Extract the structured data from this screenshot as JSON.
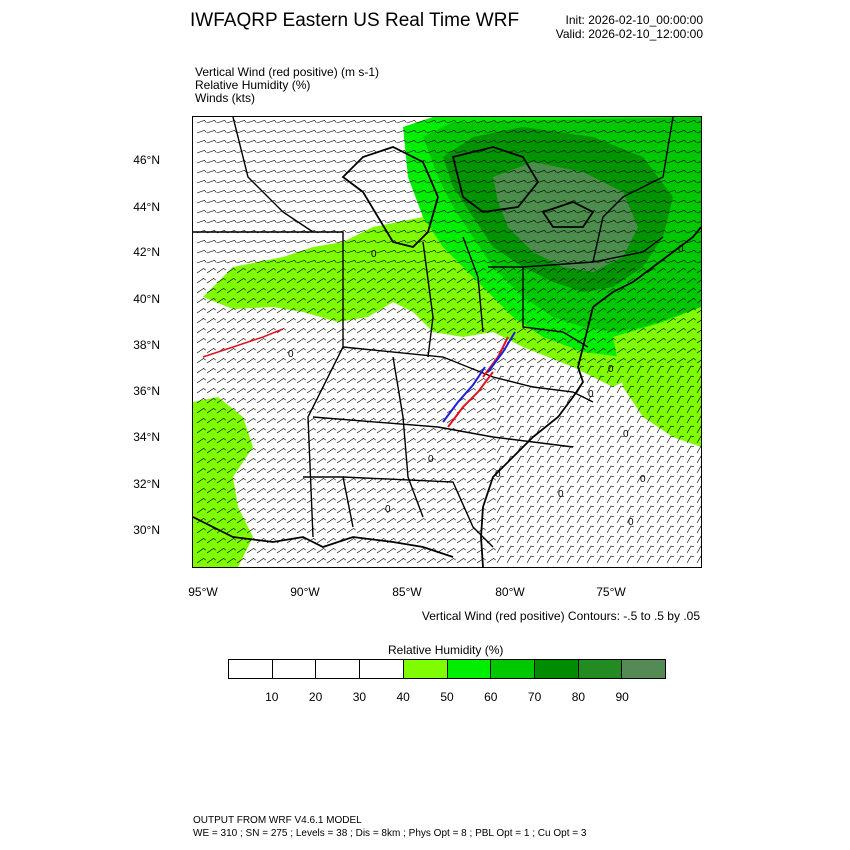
{
  "header": {
    "title": "IWFAQRP Eastern US Real Time WRF",
    "init": "Init: 2026-02-10_00:00:00",
    "valid": "Valid: 2026-02-10_12:00:00"
  },
  "fields": [
    "Vertical Wind (red positive)   (m s-1)",
    "Relative Humidity   (%)",
    "Winds   (kts)"
  ],
  "map": {
    "lat_labels": [
      "46°N",
      "44°N",
      "42°N",
      "40°N",
      "38°N",
      "36°N",
      "34°N",
      "32°N",
      "30°N"
    ],
    "lon_labels": [
      "95°W",
      "90°W",
      "85°W",
      "80°W",
      "75°W"
    ],
    "contour_zero_label": "0",
    "colors": {
      "rh40": "#7ffc00",
      "rh50": "#00ee00",
      "rh60": "#00c800",
      "rh70": "#008b00",
      "rh80": "#228b22",
      "rh90": "#548b54",
      "border": "#000000",
      "updraft": "#e0141e",
      "downdraft": "#1e1ee0",
      "barb": "#000000"
    }
  },
  "contour_note": "Vertical Wind (red positive) Contours: -.5 to .5 by .05",
  "labelbar": {
    "title": "Relative Humidity   (%)",
    "ticks": [
      "10",
      "20",
      "30",
      "40",
      "50",
      "60",
      "70",
      "80",
      "90"
    ],
    "colors": [
      "#ffffff",
      "#ffffff",
      "#ffffff",
      "#ffffff",
      "#7ffc00",
      "#00ee00",
      "#00c800",
      "#008b00",
      "#228b22",
      "#548b54"
    ]
  },
  "footer": {
    "line1": "OUTPUT FROM WRF V4.6.1 MODEL",
    "line2": "WE = 310 ; SN = 275 ; Levels = 38 ; Dis = 8km ; Phys Opt = 8 ; PBL Opt = 1 ; Cu Opt = 3"
  }
}
